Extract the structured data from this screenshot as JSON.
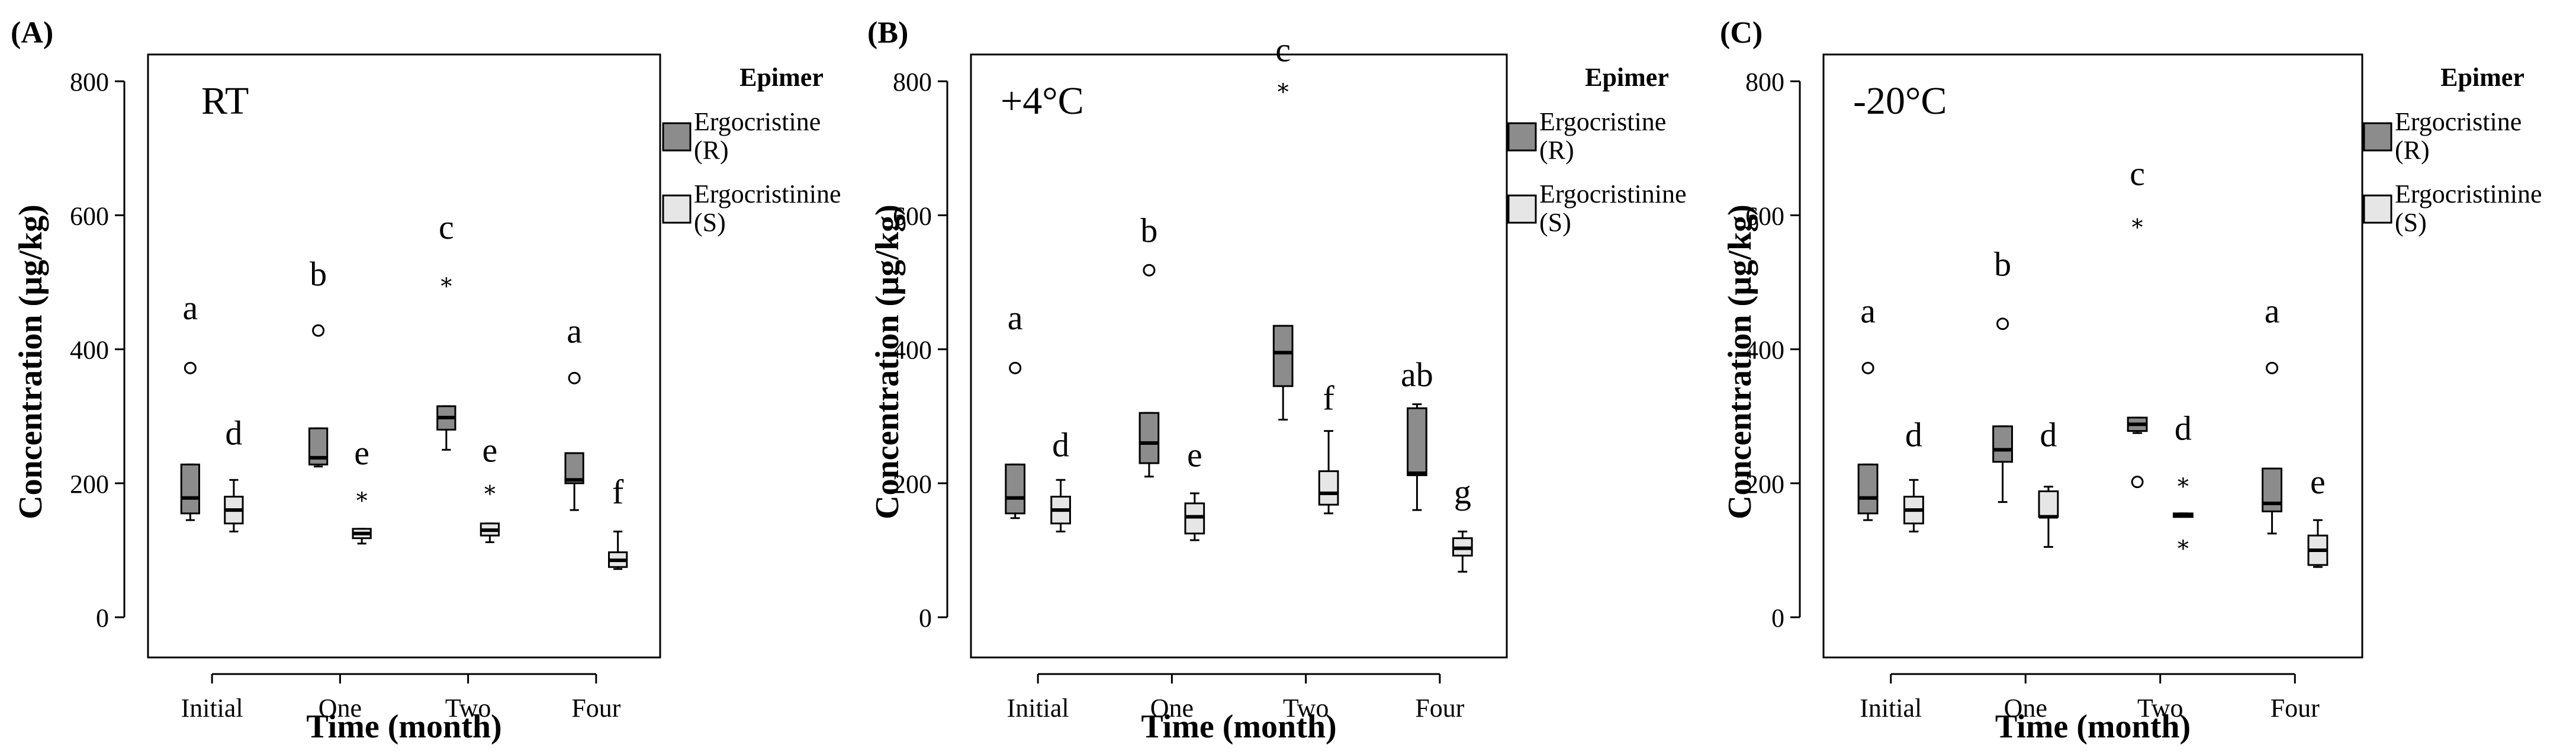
{
  "colors": {
    "ergocristine_fill": "#8c8c8c",
    "ergocristinine_fill": "#e6e6e6",
    "stroke": "#000000",
    "background": "#ffffff"
  },
  "legend": {
    "title": "Epimer",
    "entries": [
      {
        "label_line1": "Ergocristine",
        "label_line2": "(R)",
        "color": "#8c8c8c"
      },
      {
        "label_line1": "Ergocristinine",
        "label_line2": "(S)",
        "color": "#e6e6e6"
      }
    ]
  },
  "chart_data": [
    {
      "type": "box",
      "panel_label": "(A)",
      "condition": "RT",
      "xlabel": "Time (month)",
      "ylabel": "Concentration (µg/kg)",
      "ylim": [
        -60,
        840
      ],
      "yticks": [
        0,
        200,
        400,
        600,
        800
      ],
      "categories": [
        "Initial",
        "One",
        "Two",
        "Four"
      ],
      "series": [
        {
          "name": "Ergocristine (R)",
          "boxes": [
            {
              "min": 145,
              "q1": 155,
              "median": 178,
              "q3": 228,
              "max": 228,
              "outliers": [
                {
                  "value": 372,
                  "marker": "circle"
                }
              ],
              "letter": "a",
              "letter_value": 445
            },
            {
              "min": 225,
              "q1": 228,
              "median": 238,
              "q3": 282,
              "max": 282,
              "outliers": [
                {
                  "value": 428,
                  "marker": "circle"
                }
              ],
              "letter": "b",
              "letter_value": 495
            },
            {
              "min": 250,
              "q1": 280,
              "median": 298,
              "q3": 315,
              "max": 315,
              "outliers": [
                {
                  "value": 502,
                  "marker": "star"
                }
              ],
              "letter": "c",
              "letter_value": 565
            },
            {
              "min": 160,
              "q1": 200,
              "median": 205,
              "q3": 245,
              "max": 245,
              "outliers": [
                {
                  "value": 357,
                  "marker": "circle"
                }
              ],
              "letter": "a",
              "letter_value": 410
            }
          ]
        },
        {
          "name": "Ergocristinine (S)",
          "boxes": [
            {
              "min": 128,
              "q1": 140,
              "median": 160,
              "q3": 180,
              "max": 205,
              "outliers": [],
              "letter": "d",
              "letter_value": 258
            },
            {
              "min": 110,
              "q1": 118,
              "median": 125,
              "q3": 132,
              "max": 132,
              "outliers": [
                {
                  "value": 182,
                  "marker": "star"
                }
              ],
              "letter": "e",
              "letter_value": 228
            },
            {
              "min": 112,
              "q1": 122,
              "median": 130,
              "q3": 140,
              "max": 140,
              "outliers": [
                {
                  "value": 192,
                  "marker": "star"
                }
              ],
              "letter": "e",
              "letter_value": 232
            },
            {
              "min": 72,
              "q1": 75,
              "median": 85,
              "q3": 97,
              "max": 128,
              "outliers": [],
              "letter": "f",
              "letter_value": 170
            }
          ]
        }
      ]
    },
    {
      "type": "box",
      "panel_label": "(B)",
      "condition": "+4°C",
      "xlabel": "Time (month)",
      "ylabel": "Concentration (µg/kg)",
      "ylim": [
        -60,
        840
      ],
      "yticks": [
        0,
        200,
        400,
        600,
        800
      ],
      "categories": [
        "Initial",
        "One",
        "Two",
        "Four"
      ],
      "series": [
        {
          "name": "Ergocristine (R)",
          "boxes": [
            {
              "min": 148,
              "q1": 155,
              "median": 178,
              "q3": 228,
              "max": 228,
              "outliers": [
                {
                  "value": 372,
                  "marker": "circle"
                }
              ],
              "letter": "a",
              "letter_value": 430
            },
            {
              "min": 210,
              "q1": 230,
              "median": 260,
              "q3": 305,
              "max": 305,
              "outliers": [
                {
                  "value": 518,
                  "marker": "circle"
                }
              ],
              "letter": "b",
              "letter_value": 560
            },
            {
              "min": 295,
              "q1": 345,
              "median": 395,
              "q3": 435,
              "max": 435,
              "outliers": [
                {
                  "value": 792,
                  "marker": "star"
                }
              ],
              "letter": "c",
              "letter_value": 830
            },
            {
              "min": 160,
              "q1": 212,
              "median": 215,
              "q3": 312,
              "max": 318,
              "outliers": [],
              "letter": "ab",
              "letter_value": 345
            }
          ]
        },
        {
          "name": "Ergocristinine (S)",
          "boxes": [
            {
              "min": 128,
              "q1": 140,
              "median": 160,
              "q3": 180,
              "max": 205,
              "outliers": [],
              "letter": "d",
              "letter_value": 240
            },
            {
              "min": 115,
              "q1": 125,
              "median": 150,
              "q3": 170,
              "max": 185,
              "outliers": [],
              "letter": "e",
              "letter_value": 225
            },
            {
              "min": 155,
              "q1": 168,
              "median": 185,
              "q3": 218,
              "max": 278,
              "outliers": [],
              "letter": "f",
              "letter_value": 310
            },
            {
              "min": 68,
              "q1": 92,
              "median": 103,
              "q3": 118,
              "max": 128,
              "outliers": [],
              "letter": "g",
              "letter_value": 170
            }
          ]
        }
      ]
    },
    {
      "type": "box",
      "panel_label": "(C)",
      "condition": "-20°C",
      "xlabel": "Time (month)",
      "ylabel": "Concentration (µg/kg)",
      "ylim": [
        -60,
        840
      ],
      "yticks": [
        0,
        200,
        400,
        600,
        800
      ],
      "categories": [
        "Initial",
        "One",
        "Two",
        "Four"
      ],
      "series": [
        {
          "name": "Ergocristine (R)",
          "boxes": [
            {
              "min": 145,
              "q1": 155,
              "median": 178,
              "q3": 228,
              "max": 228,
              "outliers": [
                {
                  "value": 372,
                  "marker": "circle"
                }
              ],
              "letter": "a",
              "letter_value": 440
            },
            {
              "min": 172,
              "q1": 232,
              "median": 250,
              "q3": 285,
              "max": 285,
              "outliers": [
                {
                  "value": 438,
                  "marker": "circle"
                }
              ],
              "letter": "b",
              "letter_value": 510
            },
            {
              "min": 275,
              "q1": 278,
              "median": 288,
              "q3": 298,
              "max": 298,
              "outliers": [
                {
                  "value": 202,
                  "marker": "circle"
                },
                {
                  "value": 590,
                  "marker": "star"
                }
              ],
              "letter": "c",
              "letter_value": 645
            },
            {
              "min": 125,
              "q1": 158,
              "median": 170,
              "q3": 222,
              "max": 222,
              "outliers": [
                {
                  "value": 372,
                  "marker": "circle"
                }
              ],
              "letter": "a",
              "letter_value": 440
            }
          ]
        },
        {
          "name": "Ergocristinine (S)",
          "boxes": [
            {
              "min": 128,
              "q1": 140,
              "median": 160,
              "q3": 180,
              "max": 205,
              "outliers": [],
              "letter": "d",
              "letter_value": 255
            },
            {
              "min": 105,
              "q1": 150,
              "median": 150,
              "q3": 188,
              "max": 195,
              "outliers": [],
              "letter": "d",
              "letter_value": 255
            },
            {
              "min": 150,
              "q1": 150,
              "median": 152,
              "q3": 155,
              "max": 155,
              "outliers": [
                {
                  "value": 203,
                  "marker": "star"
                },
                {
                  "value": 110,
                  "marker": "star"
                }
              ],
              "letter": "d",
              "letter_value": 265
            },
            {
              "min": 75,
              "q1": 78,
              "median": 100,
              "q3": 122,
              "max": 145,
              "outliers": [],
              "letter": "e",
              "letter_value": 185
            }
          ]
        }
      ]
    }
  ]
}
